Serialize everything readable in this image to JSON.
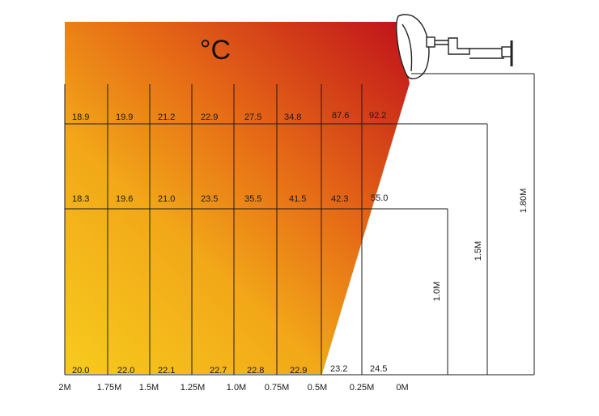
{
  "unit_label": "°C",
  "distance_labels": [
    "2M",
    "1.75M",
    "1.5M",
    "1.25M",
    "1.0M",
    "0.75M",
    "0.5M",
    "0.25M",
    "0M"
  ],
  "height_labels": [
    "1.80M",
    "1.5M",
    "1.0M"
  ],
  "rows": [
    {
      "height": "1.5M",
      "values": [
        "18.9",
        "19.9",
        "21.2",
        "22.9",
        "27.5",
        "34.8",
        "87.6",
        "92.2"
      ]
    },
    {
      "height": "1.0M",
      "values": [
        "18.3",
        "19.6",
        "21.0",
        "23.5",
        "35.5",
        "41.5",
        "42.3",
        "55.0"
      ]
    },
    {
      "height": "0M",
      "values": [
        "20.0",
        "22.0",
        "22.1",
        "22.7",
        "22.8",
        "22.9",
        "23.2",
        "24.5"
      ]
    }
  ],
  "colors": {
    "hot": "#c41a1a",
    "mid": "#e86a14",
    "warm": "#f5c21a",
    "line": "#1a1a1a"
  }
}
